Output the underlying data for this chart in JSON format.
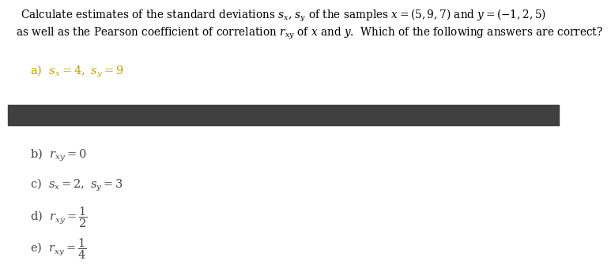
{
  "title_line1": "Calculate estimates of the standard deviations $s_x$, $s_y$ of the samples $x = (5,9,7)$ and $y = (-1,2,5)$",
  "title_line2": "as well as the Pearson coefficient of correlation $r_{xy}$ of $x$ and $y$.  Which of the following answers are correct?",
  "option_a_label": "a)",
  "option_a_text": "$s_x = 4,\\ s_y = 9$",
  "option_a_color": "#c8a000",
  "option_b_label": "b)",
  "option_b_text": "$r_{xy} = 0$",
  "option_b_color": "#444444",
  "option_c_label": "c)",
  "option_c_text": "$s_x = 2,\\ s_y = 3$",
  "option_c_color": "#444444",
  "option_d_label": "d)",
  "option_d_text": "$r_{xy} = \\dfrac{1}{2}$",
  "option_d_color": "#444444",
  "option_e_label": "e)",
  "option_e_text": "$r_{xy} = \\dfrac{1}{4}$",
  "option_e_color": "#444444",
  "divider_color": "#404040",
  "background_color": "#ffffff",
  "title_fontsize": 9.8,
  "option_fontsize": 10.5,
  "title_color": "#000000"
}
